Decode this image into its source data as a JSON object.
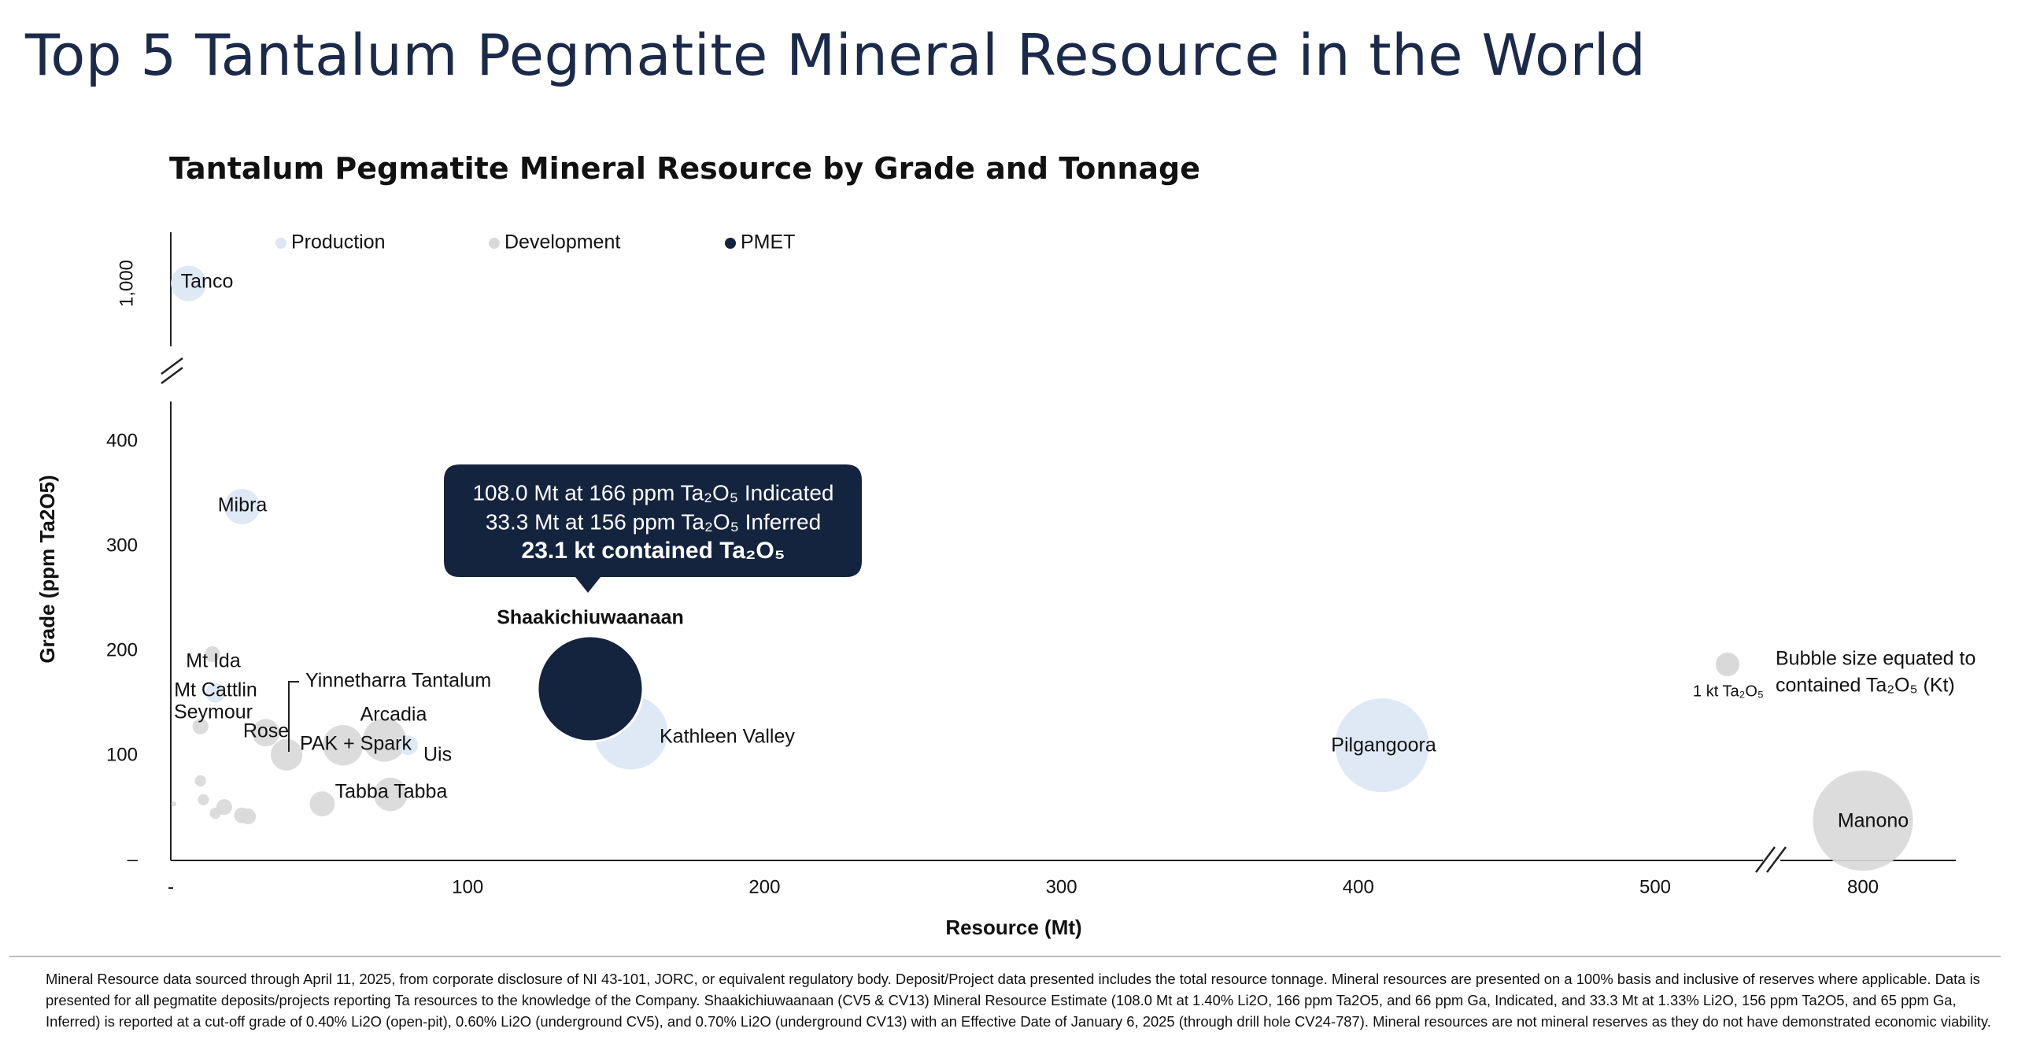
{
  "page": {
    "title": "Top 5 Tantalum Pegmatite Mineral Resource in the World",
    "footnote": "Mineral Resource data sourced through April 11, 2025, from corporate disclosure of NI 43-101, JORC, or equivalent regulatory body. Deposit/Project data presented includes the total resource tonnage. Mineral resources are presented on a 100% basis and inclusive of reserves where applicable. Data is presented for all pegmatite deposits/projects reporting Ta resources to the knowledge of the Company. Shaakichiuwaanaan (CV5 & CV13) Mineral Resource Estimate (108.0 Mt at 1.40% Li2O, 166 ppm Ta2O5, and 66 ppm Ga, Indicated, and 33.3 Mt at 1.33% Li2O, 156 ppm Ta2O5, and 65 ppm Ga, Inferred) is reported at a cut-off grade of 0.40% Li2O (open-pit), 0.60% Li2O (underground CV5), and 0.70% Li2O (underground CV13) with an Effective Date of January 6, 2025 (through drill hole CV24-787). Mineral resources are not mineral reserves as they do not have demonstrated economic viability."
  },
  "chart_data": {
    "type": "scatter",
    "title": "Tantalum Pegmatite Mineral Resource by Grade and Tonnage",
    "xlabel": "Resource (Mt)",
    "ylabel": "Grade (ppm Ta2O5)",
    "x_ticks": [
      "-",
      "100",
      "200",
      "300",
      "400",
      "500",
      "800"
    ],
    "y_ticks": [
      "–",
      "100",
      "200",
      "300",
      "400",
      "1,000"
    ],
    "axis_breaks": "x axis broken between 500 and 800; y axis broken between 400 and 1,000",
    "legend": {
      "position": "top",
      "items": [
        {
          "name": "Production",
          "color": "#dce6f4"
        },
        {
          "name": "Development",
          "color": "#d9d9d9"
        },
        {
          "name": "PMET",
          "color": "#14243f"
        }
      ]
    },
    "series": [
      {
        "name": "Production",
        "color": "#dce6f4",
        "points": [
          {
            "label": "Tanco",
            "x": 6,
            "y": 1000,
            "size": 1.0
          },
          {
            "label": "Mibra",
            "x": 24,
            "y": 338,
            "size": 1.0
          },
          {
            "label": "Kathleen Valley",
            "x": 155,
            "y": 122,
            "size": 4.3
          },
          {
            "label": "Pilgangoora",
            "x": 408,
            "y": 110,
            "size": 7.0
          },
          {
            "label": "Mt Cattlin",
            "x": 15,
            "y": 160,
            "size": 0.3
          },
          {
            "label": "Uis",
            "x": 80,
            "y": 110,
            "size": 0.3
          }
        ]
      },
      {
        "name": "Development",
        "color": "#d9d9d9",
        "points": [
          {
            "label": "Mt Ida",
            "x": 14,
            "y": 197,
            "size": 0.2
          },
          {
            "label": "Seymour",
            "x": 10,
            "y": 128,
            "size": 0.2
          },
          {
            "label": "Rose",
            "x": 32,
            "y": 122,
            "size": 0.6
          },
          {
            "label": "Yinnetharra Tantalum",
            "x": 39,
            "y": 101,
            "size": 0.8
          },
          {
            "label": "PAK + Spark",
            "x": 58,
            "y": 110,
            "size": 1.3
          },
          {
            "label": "Arcadia",
            "x": 72,
            "y": 115,
            "size": 1.5
          },
          {
            "label": "Tabba Tabba",
            "x": 74,
            "y": 63,
            "size": 0.9
          },
          {
            "label": "",
            "x": 51,
            "y": 54,
            "size": 0.5
          },
          {
            "label": "",
            "x": 10,
            "y": 76,
            "size": 0.1
          },
          {
            "label": "",
            "x": 11,
            "y": 58,
            "size": 0.1
          },
          {
            "label": "",
            "x": 18,
            "y": 51,
            "size": 0.2
          },
          {
            "label": "",
            "x": 15,
            "y": 45,
            "size": 0.1
          },
          {
            "label": "",
            "x": 24,
            "y": 43,
            "size": 0.2
          },
          {
            "label": "",
            "x": 26,
            "y": 42,
            "size": 0.2
          },
          {
            "label": "",
            "x": 1,
            "y": 54,
            "size": 0.02
          },
          {
            "label": "Manono",
            "x": 800,
            "y": 38,
            "size": 8.0
          }
        ]
      },
      {
        "name": "PMET",
        "color": "#14243f",
        "points": [
          {
            "label": "Shaakichiuwaanaan",
            "x": 141.3,
            "y": 164,
            "size": 23.1
          }
        ]
      }
    ],
    "callout": {
      "line1": "108.0 Mt at 166 ppm Ta₂O₅ Indicated",
      "line2": "33.3 Mt at 156 ppm Ta₂O₅ Inferred",
      "line3": "23.1 kt contained Ta₂O₅"
    },
    "size_legend": {
      "reference": "1 kt Ta₂O₅",
      "reference_kt": 1,
      "note": "Bubble size equated to contained Ta₂O₅ (Kt)"
    }
  }
}
